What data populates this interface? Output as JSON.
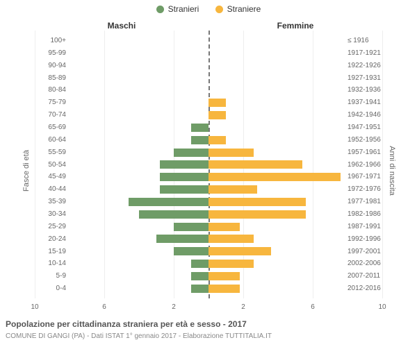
{
  "legend": {
    "male": {
      "label": "Stranieri",
      "color": "#6f9c67"
    },
    "female": {
      "label": "Straniere",
      "color": "#f7b63e"
    }
  },
  "side_titles": {
    "male": "Maschi",
    "female": "Femmine"
  },
  "axis": {
    "left_title": "Fasce di età",
    "right_title": "Anni di nascita",
    "half_max": 10,
    "ticks": [
      10,
      6,
      2,
      2,
      6,
      10
    ]
  },
  "caption": "Popolazione per cittadinanza straniera per età e sesso - 2017",
  "subcaption": "COMUNE DI GANGI (PA) - Dati ISTAT 1° gennaio 2017 - Elaborazione TUTTITALIA.IT",
  "rows": [
    {
      "age": "0-4",
      "birth": "2012-2016",
      "m": 1.0,
      "f": 1.8
    },
    {
      "age": "5-9",
      "birth": "2007-2011",
      "m": 1.0,
      "f": 1.8
    },
    {
      "age": "10-14",
      "birth": "2002-2006",
      "m": 1.0,
      "f": 2.6
    },
    {
      "age": "15-19",
      "birth": "1997-2001",
      "m": 2.0,
      "f": 3.6
    },
    {
      "age": "20-24",
      "birth": "1992-1996",
      "m": 3.0,
      "f": 2.6
    },
    {
      "age": "25-29",
      "birth": "1987-1991",
      "m": 2.0,
      "f": 1.8
    },
    {
      "age": "30-34",
      "birth": "1982-1986",
      "m": 4.0,
      "f": 5.6
    },
    {
      "age": "35-39",
      "birth": "1977-1981",
      "m": 4.6,
      "f": 5.6
    },
    {
      "age": "40-44",
      "birth": "1972-1976",
      "m": 2.8,
      "f": 2.8
    },
    {
      "age": "45-49",
      "birth": "1967-1971",
      "m": 2.8,
      "f": 7.6
    },
    {
      "age": "50-54",
      "birth": "1962-1966",
      "m": 2.8,
      "f": 5.4
    },
    {
      "age": "55-59",
      "birth": "1957-1961",
      "m": 2.0,
      "f": 2.6
    },
    {
      "age": "60-64",
      "birth": "1952-1956",
      "m": 1.0,
      "f": 1.0
    },
    {
      "age": "65-69",
      "birth": "1947-1951",
      "m": 1.0,
      "f": 0
    },
    {
      "age": "70-74",
      "birth": "1942-1946",
      "m": 0,
      "f": 1.0
    },
    {
      "age": "75-79",
      "birth": "1937-1941",
      "m": 0,
      "f": 1.0
    },
    {
      "age": "80-84",
      "birth": "1932-1936",
      "m": 0,
      "f": 0
    },
    {
      "age": "85-89",
      "birth": "1927-1931",
      "m": 0,
      "f": 0
    },
    {
      "age": "90-94",
      "birth": "1922-1926",
      "m": 0,
      "f": 0
    },
    {
      "age": "95-99",
      "birth": "1917-1921",
      "m": 0,
      "f": 0
    },
    {
      "age": "100+",
      "birth": "≤ 1916",
      "m": 0,
      "f": 0
    }
  ],
  "colors": {
    "grid": "#eeeeee",
    "center": "#777777",
    "bg": "#ffffff"
  }
}
